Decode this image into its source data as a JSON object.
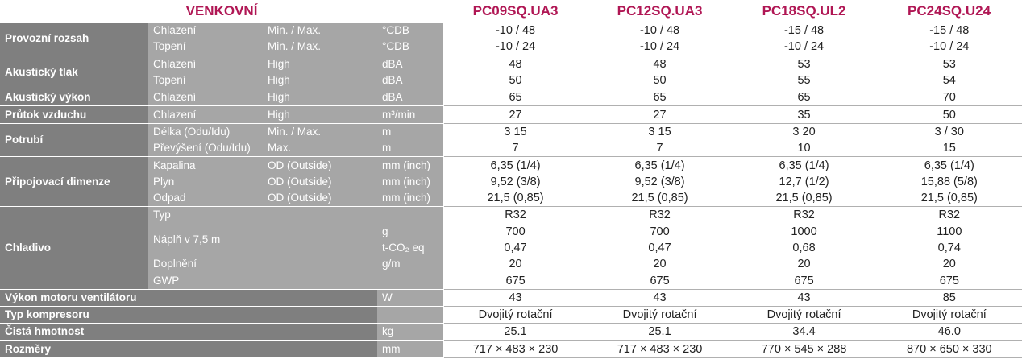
{
  "header": {
    "title": "VENKOVNÍ",
    "models": [
      "PC09SQ.UA3",
      "PC12SQ.UA3",
      "PC18SQ.UL2",
      "PC24SQ.U24"
    ]
  },
  "rows": [
    {
      "cat": "Provozní rozsah",
      "sub": "Chlazení",
      "cond": "Min. / Max.",
      "unit": "°CDB",
      "v": [
        "-10 / 48",
        "-10 / 48",
        "-15 / 48",
        "-15 / 48"
      ]
    },
    {
      "sub": "Topení",
      "cond": "Min. / Max.",
      "unit": "°CDB",
      "v": [
        "-10 / 24",
        "-10 / 24",
        "-10 / 24",
        "-10 / 24"
      ]
    },
    {
      "cat": "Akustický tlak",
      "sub": "Chlazení",
      "cond": "High",
      "unit": "dBA",
      "v": [
        "48",
        "48",
        "53",
        "53"
      ]
    },
    {
      "sub": "Topení",
      "cond": "High",
      "unit": "dBA",
      "v": [
        "50",
        "50",
        "55",
        "54"
      ]
    },
    {
      "cat": "Akustický výkon",
      "sub": "Chlazení",
      "cond": "High",
      "unit": "dBA",
      "v": [
        "65",
        "65",
        "65",
        "70"
      ]
    },
    {
      "cat": "Průtok vzduchu",
      "sub": "Chlazení",
      "cond": "High",
      "unit": "m³/min",
      "v": [
        "27",
        "27",
        "35",
        "50"
      ]
    },
    {
      "cat": "Potrubí",
      "sub": "Délka (Odu/Idu)",
      "cond": "Min. / Max.",
      "unit": "m",
      "v": [
        "3 15",
        "3 15",
        "3 20",
        "3 / 30"
      ]
    },
    {
      "sub": "Převýšení (Odu/Idu)",
      "cond": "Max.",
      "unit": "m",
      "v": [
        "7",
        "7",
        "10",
        "15"
      ]
    },
    {
      "cat": "Připojovací dimenze",
      "sub": "Kapalina",
      "cond": "OD (Outside)",
      "unit": "mm (inch)",
      "v": [
        "6,35 (1/4)",
        "6,35 (1/4)",
        "6,35 (1/4)",
        "6,35 (1/4)"
      ]
    },
    {
      "sub": "Plyn",
      "cond": "OD (Outside)",
      "unit": "mm (inch)",
      "v": [
        "9,52 (3/8)",
        "9,52 (3/8)",
        "12,7 (1/2)",
        "15,88 (5/8)"
      ]
    },
    {
      "sub": "Odpad",
      "cond": "OD (Outside)",
      "unit": "mm (inch)",
      "v": [
        "21,5 (0,85)",
        "21,5 (0,85)",
        "21,5 (0,85)",
        "21,5 (0,85)"
      ]
    },
    {
      "cat": "Chladivo",
      "sub": "Typ",
      "cond": "",
      "unit": "",
      "v": [
        "R32",
        "R32",
        "R32",
        "R32"
      ]
    },
    {
      "sub": "Náplň v 7,5 m",
      "cond": "",
      "unit": "g",
      "v": [
        "700",
        "700",
        "1000",
        "1100"
      ]
    },
    {
      "sub": "",
      "cond": "",
      "unit": "t-CO₂ eq",
      "v": [
        "0,47",
        "0,47",
        "0,68",
        "0,74"
      ]
    },
    {
      "sub": "Doplnění",
      "cond": "",
      "unit": "g/m",
      "v": [
        "20",
        "20",
        "20",
        "20"
      ]
    },
    {
      "sub": "GWP",
      "cond": "",
      "unit": "",
      "v": [
        "675",
        "675",
        "675",
        "675"
      ]
    },
    {
      "cat": "Výkon motoru ventilátoru",
      "sub": "",
      "cond": "",
      "unit": "W",
      "v": [
        "43",
        "43",
        "43",
        "85"
      ]
    },
    {
      "cat": "Typ kompresoru",
      "sub": "",
      "cond": "",
      "unit": "",
      "v": [
        "Dvojitý rotační",
        "Dvojitý rotační",
        "Dvojitý rotační",
        "Dvojitý rotační"
      ]
    },
    {
      "cat": "Čistá hmotnost",
      "sub": "",
      "cond": "",
      "unit": "kg",
      "v": [
        "25.1",
        "25.1",
        "34.4",
        "46.0"
      ]
    },
    {
      "cat": "Rozměry",
      "sub": "",
      "cond": "",
      "unit": "mm",
      "v": [
        "717 × 483 × 230",
        "717 × 483 × 230",
        "770 × 545 × 288",
        "870 × 650 × 330"
      ]
    }
  ]
}
